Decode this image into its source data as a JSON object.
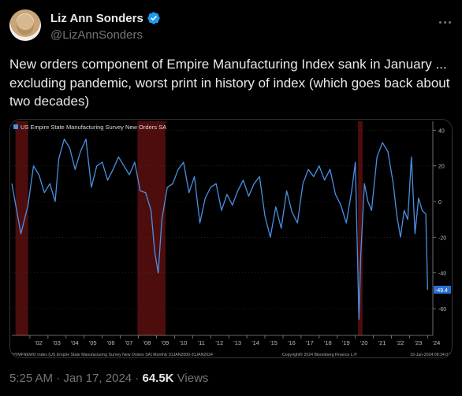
{
  "author": {
    "name": "Liz Ann Sonders",
    "handle": "@LizAnnSonders",
    "verified_color": "#1d9bf0"
  },
  "tweet": {
    "text": "New orders component of Empire Manufacturing Index sank in January ... excluding pandemic, worst print in history of index (which goes back about two decades)"
  },
  "meta": {
    "time": "5:25 AM",
    "separator": " · ",
    "date": "Jan 17, 2024",
    "separator2": " · ",
    "views_count": "64.5K",
    "views_label": " Views"
  },
  "chart_data": {
    "type": "line",
    "legend": "US Empire State Manufacturing Survey New Orders SA",
    "line_color": "#4a90e2",
    "recession_color": "#5a0f0f",
    "recessions": [
      [
        2001.2,
        2001.9
      ],
      [
        2007.95,
        2009.5
      ],
      [
        2020.15,
        2020.4
      ]
    ],
    "last_value_label": "-49.4",
    "ylim": [
      -75,
      45
    ],
    "yticks": [
      "40",
      "20",
      "0",
      "-20",
      "-40",
      "-60"
    ],
    "ytick_values": [
      40,
      20,
      0,
      -20,
      -40,
      -60
    ],
    "xlim": [
      2001.0,
      2024.2
    ],
    "xticks": [
      "'02",
      "'03",
      "'04",
      "'05",
      "'06",
      "'07",
      "'08",
      "'09",
      "'10",
      "'11",
      "'12",
      "'13",
      "'14",
      "'15",
      "'16",
      "'17",
      "'18",
      "'19",
      "'20",
      "'21",
      "'22",
      "'23",
      "'24"
    ],
    "xtick_values": [
      2002,
      2003,
      2004,
      2005,
      2006,
      2007,
      2008,
      2009,
      2010,
      2011,
      2012,
      2013,
      2014,
      2015,
      2016,
      2017,
      2018,
      2019,
      2020,
      2021,
      2022,
      2023,
      2024
    ],
    "footer_left": "NYMFNEWO Index (US Empire State Manufacturing Survey New Orders SA)  Monthly 01JAN2000-31JAN2024",
    "footer_mid": "Copyright© 2024 Bloomberg Finance L.P.",
    "footer_right": "16-Jan-2024 08:34:07",
    "x": [
      2001.0,
      2001.5,
      2001.9,
      2002.2,
      2002.5,
      2002.8,
      2003.1,
      2003.4,
      2003.6,
      2003.9,
      2004.2,
      2004.5,
      2004.8,
      2005.1,
      2005.4,
      2005.7,
      2006.0,
      2006.3,
      2006.6,
      2006.9,
      2007.2,
      2007.5,
      2007.8,
      2008.1,
      2008.4,
      2008.7,
      2008.9,
      2009.1,
      2009.3,
      2009.6,
      2009.9,
      2010.2,
      2010.5,
      2010.8,
      2011.1,
      2011.4,
      2011.7,
      2012.0,
      2012.3,
      2012.6,
      2012.9,
      2013.2,
      2013.5,
      2013.8,
      2014.1,
      2014.4,
      2014.7,
      2015.0,
      2015.3,
      2015.6,
      2015.9,
      2016.2,
      2016.5,
      2016.8,
      2017.1,
      2017.4,
      2017.7,
      2018.0,
      2018.3,
      2018.6,
      2018.9,
      2019.2,
      2019.5,
      2019.8,
      2020.0,
      2020.2,
      2020.3,
      2020.5,
      2020.7,
      2020.9,
      2021.2,
      2021.5,
      2021.8,
      2022.1,
      2022.3,
      2022.5,
      2022.7,
      2022.9,
      2023.1,
      2023.3,
      2023.5,
      2023.7,
      2023.9,
      2024.0
    ],
    "values": [
      10,
      -18,
      -2,
      20,
      15,
      5,
      10,
      0,
      24,
      35,
      30,
      18,
      28,
      35,
      8,
      20,
      22,
      12,
      18,
      25,
      20,
      15,
      22,
      6,
      5,
      -5,
      -28,
      -40,
      -10,
      8,
      10,
      18,
      22,
      5,
      14,
      -12,
      2,
      8,
      10,
      -5,
      4,
      -2,
      6,
      12,
      3,
      10,
      14,
      -8,
      -20,
      -3,
      -15,
      6,
      -6,
      -12,
      10,
      18,
      14,
      20,
      12,
      18,
      4,
      -2,
      -12,
      6,
      22,
      -66,
      -30,
      10,
      0,
      -5,
      25,
      33,
      28,
      10,
      -8,
      -20,
      -5,
      -10,
      25,
      -18,
      2,
      -5,
      -7,
      -49.4
    ]
  }
}
